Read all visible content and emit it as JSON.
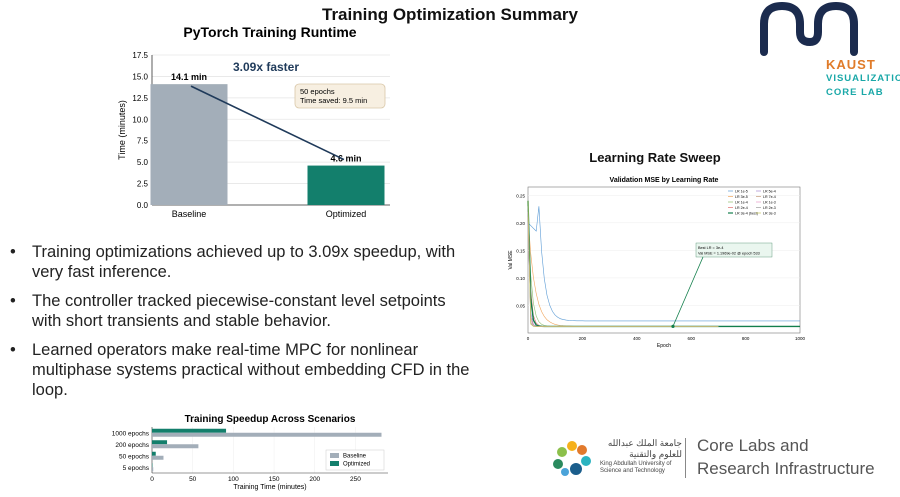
{
  "slide": {
    "title": "Training Optimization Summary"
  },
  "logo": {
    "name": "KAUST",
    "line1": "VISUALIZATION",
    "line2": "CORE LAB"
  },
  "bullets": [
    "Training optimizations achieved up to 3.09x speedup, with very fast inference.",
    "The controller tracked piecewise-constant level setpoints with short transients and stable behavior.",
    "Learned operators make real-time MPC for nonlinear multiphase systems practical without embedding CFD in the loop."
  ],
  "chart_data": [
    {
      "type": "bar",
      "title": "PyTorch Training Runtime",
      "ylabel": "Time (minutes)",
      "categories": [
        "Baseline",
        "Optimized"
      ],
      "values": [
        14.1,
        4.6
      ],
      "value_labels": [
        "14.1 min",
        "4.6 min"
      ],
      "colors": [
        "#a3aeb9",
        "#137f6c"
      ],
      "ylim": [
        0,
        17.5
      ],
      "yticks": [
        "0.0",
        "2.5",
        "5.0",
        "7.5",
        "10.0",
        "12.5",
        "15.0",
        "17.5"
      ],
      "annotation": "3.09x faster",
      "note": [
        "50 epochs",
        "Time saved: 9.5 min"
      ],
      "grid": true
    },
    {
      "type": "line",
      "title": "Learning Rate Sweep",
      "subtitle": "Validation MSE by Learning Rate",
      "xlabel": "Epoch",
      "ylabel": "Val MSE",
      "xlim": [
        0,
        1000
      ],
      "ylim": [
        0,
        0.25
      ],
      "xticks": [
        "0",
        "200",
        "400",
        "600",
        "800",
        "1000"
      ],
      "yticks": [
        "0.05",
        "0.10",
        "0.15",
        "0.20",
        "0.25"
      ],
      "legend_position": "top-right",
      "legend": [
        "LR 1e-5",
        "LR 3e-5",
        "LR 1e-4",
        "LR 2e-4",
        "LR 3e-4 (best)",
        "LR 5e-4",
        "LR 7e-4",
        "LR 1e-3",
        "LR 2e-3",
        "LR 3e-3"
      ],
      "series_colors": [
        "#5b9bd5",
        "#f0a55b",
        "#8fbf6f",
        "#e06c6c",
        "#137f4c",
        "#a58ad1",
        "#c59a7a",
        "#e89ac7",
        "#9e9e9e",
        "#c8c85a"
      ],
      "best_annotation": [
        "Best LR = 3e-4",
        "Val MSE = 1.1969e-02 @ epoch 533"
      ],
      "best_point": {
        "x": 533,
        "y": 0.012
      }
    },
    {
      "type": "bar",
      "orientation": "horizontal",
      "title": "Training Speedup Across Scenarios",
      "xlabel": "Training Time (minutes)",
      "categories": [
        "1000 epochs",
        "200 epochs",
        "50 epochs",
        "5 epochs"
      ],
      "series": [
        {
          "name": "Baseline",
          "values": [
            282,
            57,
            14.1,
            1.5
          ],
          "color": "#a3aeb9"
        },
        {
          "name": "Optimized",
          "values": [
            91,
            18.5,
            4.6,
            0.5
          ],
          "color": "#137f6c"
        }
      ],
      "xlim": [
        0,
        290
      ],
      "xticks": [
        "0",
        "50",
        "100",
        "150",
        "200",
        "250"
      ],
      "legend_position": "bottom-right"
    }
  ],
  "footer": {
    "arabic_line1": "جامعة الملك عبدالله",
    "arabic_line2": "للعلوم والتقنية",
    "english_line1": "King Abdullah University of",
    "english_line2": "Science and Technology",
    "core_line1": "Core Labs and",
    "core_line2": "Research Infrastructure"
  }
}
